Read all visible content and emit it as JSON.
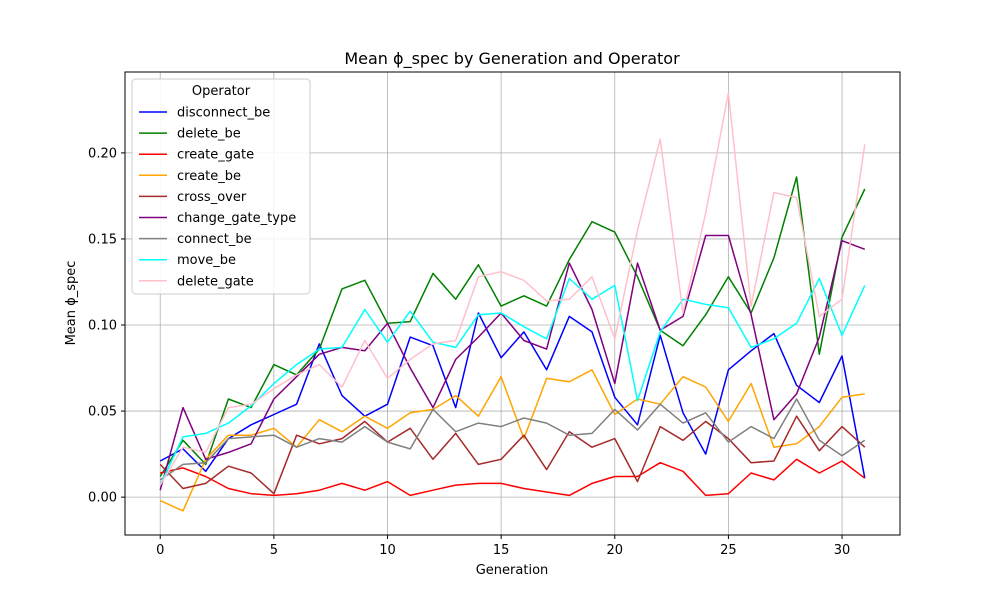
{
  "chart_data": {
    "type": "line",
    "title": "Mean ϕ_spec by Generation and Operator",
    "xlabel": "Generation",
    "ylabel": "Mean ϕ_spec",
    "xlim": [
      -1.55,
      32.55
    ],
    "ylim": [
      -0.022,
      0.247
    ],
    "xticks": [
      0,
      5,
      10,
      15,
      20,
      25,
      30
    ],
    "xtick_labels": [
      "0",
      "5",
      "10",
      "15",
      "20",
      "25",
      "30"
    ],
    "yticks": [
      0.0,
      0.05,
      0.1,
      0.15,
      0.2
    ],
    "ytick_labels": [
      "0.00",
      "0.05",
      "0.10",
      "0.15",
      "0.20"
    ],
    "grid": true,
    "legend_title": "Operator",
    "legend_position": "upper-left",
    "x": [
      0,
      1,
      2,
      3,
      4,
      5,
      6,
      7,
      8,
      9,
      10,
      11,
      12,
      13,
      14,
      15,
      16,
      17,
      18,
      19,
      20,
      21,
      22,
      23,
      24,
      25,
      26,
      27,
      28,
      29,
      30,
      31
    ],
    "series": [
      {
        "name": "disconnect_be",
        "color": "#0000ff",
        "values": [
          0.021,
          0.028,
          0.015,
          0.034,
          0.042,
          0.048,
          0.054,
          0.089,
          0.059,
          0.047,
          0.054,
          0.093,
          0.088,
          0.052,
          0.107,
          0.081,
          0.096,
          0.074,
          0.105,
          0.096,
          0.058,
          0.042,
          0.094,
          0.049,
          0.025,
          0.074,
          0.085,
          0.095,
          0.065,
          0.055,
          0.082,
          0.011
        ]
      },
      {
        "name": "delete_be",
        "color": "#008000",
        "values": [
          0.012,
          0.033,
          0.019,
          0.057,
          0.052,
          0.077,
          0.071,
          0.086,
          0.121,
          0.126,
          0.101,
          0.102,
          0.13,
          0.115,
          0.135,
          0.111,
          0.117,
          0.111,
          0.138,
          0.16,
          0.154,
          0.128,
          0.097,
          0.088,
          0.106,
          0.128,
          0.107,
          0.139,
          0.186,
          0.083,
          0.151,
          0.179
        ]
      },
      {
        "name": "create_gate",
        "color": "#ff0000",
        "values": [
          0.014,
          0.017,
          0.012,
          0.005,
          0.002,
          0.001,
          0.002,
          0.004,
          0.008,
          0.004,
          0.009,
          0.001,
          0.004,
          0.007,
          0.008,
          0.008,
          0.005,
          0.003,
          0.001,
          0.008,
          0.012,
          0.012,
          0.02,
          0.015,
          0.001,
          0.002,
          0.014,
          0.01,
          0.022,
          0.014,
          0.021,
          0.011
        ]
      },
      {
        "name": "create_be",
        "color": "#ffa500",
        "values": [
          -0.002,
          -0.008,
          0.022,
          0.036,
          0.036,
          0.04,
          0.029,
          0.045,
          0.038,
          0.047,
          0.04,
          0.049,
          0.051,
          0.059,
          0.047,
          0.07,
          0.034,
          0.069,
          0.067,
          0.074,
          0.048,
          0.057,
          0.054,
          0.07,
          0.064,
          0.044,
          0.066,
          0.029,
          0.031,
          0.041,
          0.058,
          0.06
        ]
      },
      {
        "name": "cross_over",
        "color": "#a52a2a",
        "values": [
          0.019,
          0.005,
          0.008,
          0.018,
          0.014,
          0.002,
          0.036,
          0.031,
          0.034,
          0.044,
          0.032,
          0.04,
          0.022,
          0.037,
          0.019,
          0.022,
          0.036,
          0.016,
          0.038,
          0.029,
          0.034,
          0.009,
          0.041,
          0.033,
          0.044,
          0.034,
          0.02,
          0.021,
          0.047,
          0.027,
          0.041,
          0.029
        ]
      },
      {
        "name": "change_gate_type",
        "color": "#800080",
        "values": [
          0.004,
          0.052,
          0.022,
          0.026,
          0.031,
          0.057,
          0.07,
          0.083,
          0.087,
          0.085,
          0.101,
          0.075,
          0.052,
          0.08,
          0.093,
          0.107,
          0.091,
          0.086,
          0.136,
          0.109,
          0.066,
          0.136,
          0.097,
          0.105,
          0.152,
          0.152,
          0.106,
          0.045,
          0.06,
          0.093,
          0.149,
          0.144
        ]
      },
      {
        "name": "connect_be",
        "color": "#808080",
        "values": [
          0.01,
          0.019,
          0.02,
          0.034,
          0.035,
          0.036,
          0.029,
          0.034,
          0.032,
          0.041,
          0.032,
          0.028,
          0.051,
          0.038,
          0.043,
          0.041,
          0.046,
          0.043,
          0.036,
          0.037,
          0.051,
          0.039,
          0.054,
          0.043,
          0.049,
          0.032,
          0.041,
          0.034,
          0.057,
          0.033,
          0.024,
          0.033
        ]
      },
      {
        "name": "move_be",
        "color": "#00ffff",
        "values": [
          0.007,
          0.035,
          0.037,
          0.043,
          0.053,
          0.066,
          0.077,
          0.086,
          0.087,
          0.109,
          0.09,
          0.108,
          0.09,
          0.087,
          0.106,
          0.107,
          0.099,
          0.092,
          0.127,
          0.115,
          0.123,
          0.056,
          0.096,
          0.115,
          0.112,
          0.11,
          0.087,
          0.092,
          0.101,
          0.127,
          0.094,
          0.123
        ]
      },
      {
        "name": "delete_gate",
        "color": "#ffc0cb",
        "values": [
          0.007,
          0.029,
          0.026,
          0.052,
          0.054,
          0.063,
          0.071,
          0.077,
          0.064,
          0.091,
          0.069,
          0.08,
          0.089,
          0.091,
          0.128,
          0.131,
          0.126,
          0.114,
          0.115,
          0.128,
          0.092,
          0.155,
          0.208,
          0.107,
          0.165,
          0.235,
          0.111,
          0.177,
          0.174,
          0.105,
          0.115,
          0.205
        ]
      }
    ]
  }
}
